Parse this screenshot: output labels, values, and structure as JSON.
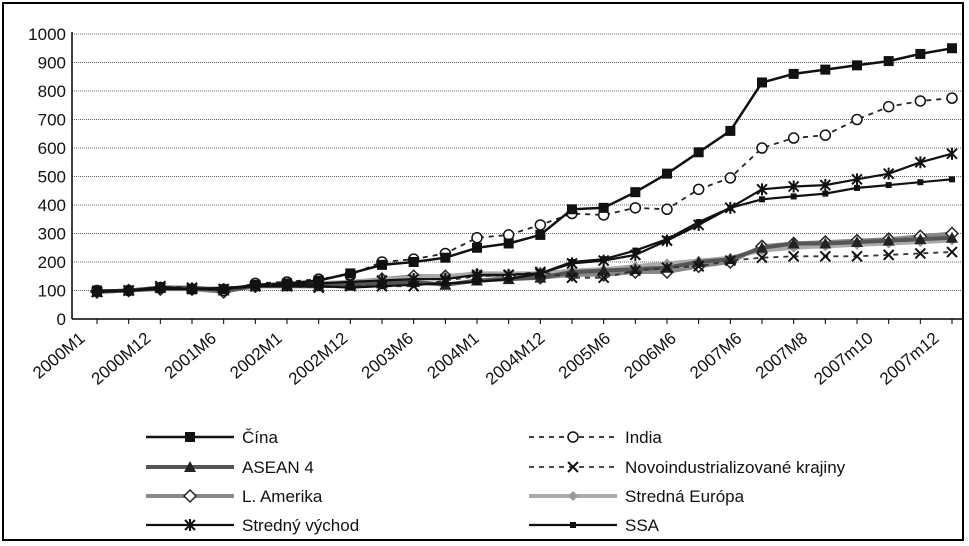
{
  "chart_data": {
    "type": "line",
    "title": "",
    "xlabel": "",
    "ylabel": "",
    "ylim": [
      0,
      1000
    ],
    "yticks": [
      "0",
      "100",
      "200",
      "300",
      "400",
      "500",
      "600",
      "700",
      "800",
      "900",
      "1000"
    ],
    "grid": "horizontal",
    "legend_position": "bottom",
    "x_tick_labels": [
      "2000M1",
      "2000M12",
      "2001M6",
      "2002M1",
      "2002M12",
      "2003M6",
      "2004M1",
      "2004M12",
      "2005M6",
      "2006M6",
      "2007M6",
      "2007M8",
      "2007m10",
      "2007m12"
    ],
    "series": [
      {
        "name": "Čína",
        "values": [
          100,
          100,
          110,
          105,
          105,
          120,
          125,
          135,
          160,
          190,
          200,
          215,
          250,
          265,
          295,
          385,
          390,
          445,
          510,
          585,
          660,
          830,
          860,
          875,
          890,
          905,
          930,
          950
        ]
      },
      {
        "name": "India",
        "values": [
          100,
          100,
          110,
          105,
          100,
          125,
          130,
          140,
          155,
          200,
          210,
          230,
          285,
          295,
          330,
          370,
          365,
          390,
          385,
          455,
          495,
          600,
          635,
          645,
          700,
          745,
          765,
          775
        ]
      },
      {
        "name": "ASEAN 4",
        "values": [
          95,
          100,
          110,
          110,
          100,
          115,
          115,
          115,
          120,
          125,
          130,
          120,
          135,
          140,
          145,
          165,
          170,
          175,
          180,
          200,
          210,
          250,
          265,
          265,
          270,
          275,
          280,
          285
        ]
      },
      {
        "name": "Novoindustrializované krajiny",
        "values": [
          95,
          100,
          115,
          110,
          105,
          115,
          115,
          110,
          115,
          115,
          115,
          135,
          150,
          155,
          165,
          145,
          145,
          170,
          180,
          185,
          205,
          215,
          220,
          220,
          220,
          225,
          230,
          235
        ]
      },
      {
        "name": "L. Amerika",
        "values": [
          95,
          100,
          105,
          105,
          95,
          115,
          120,
          125,
          130,
          140,
          150,
          150,
          155,
          150,
          145,
          155,
          155,
          165,
          165,
          185,
          200,
          255,
          265,
          270,
          275,
          280,
          290,
          300
        ]
      },
      {
        "name": "Stredná Európa",
        "values": [
          95,
          100,
          110,
          110,
          105,
          115,
          120,
          125,
          130,
          140,
          145,
          150,
          160,
          160,
          160,
          170,
          175,
          185,
          195,
          205,
          215,
          240,
          250,
          255,
          260,
          265,
          270,
          275
        ]
      },
      {
        "name": "Stredný východ",
        "values": [
          95,
          100,
          110,
          105,
          105,
          115,
          120,
          125,
          130,
          135,
          140,
          140,
          155,
          155,
          160,
          195,
          205,
          225,
          275,
          330,
          390,
          455,
          465,
          470,
          490,
          510,
          550,
          580
        ]
      },
      {
        "name": "SSA",
        "values": [
          95,
          100,
          105,
          105,
          110,
          115,
          115,
          115,
          110,
          115,
          120,
          125,
          130,
          140,
          160,
          200,
          210,
          240,
          280,
          340,
          390,
          420,
          430,
          440,
          460,
          470,
          480,
          490
        ]
      }
    ]
  }
}
